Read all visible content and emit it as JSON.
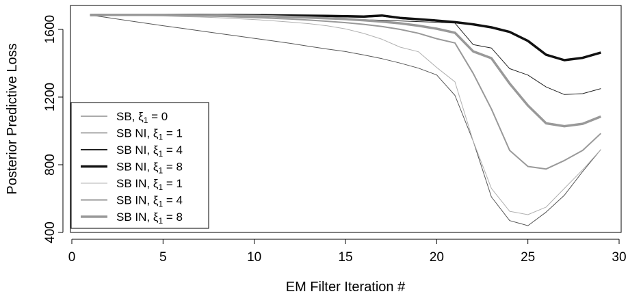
{
  "chart_data": {
    "type": "line",
    "xlabel": "EM Filter Iteration #",
    "ylabel": "Posterior Predictive Loss",
    "xlim": [
      0,
      30
    ],
    "ylim": [
      400,
      1700
    ],
    "xticks": [
      0,
      5,
      10,
      15,
      20,
      25,
      30
    ],
    "yticks": [
      400,
      800,
      1200,
      1600
    ],
    "legend_position": "bottom-left",
    "x": [
      1,
      2,
      3,
      4,
      5,
      6,
      7,
      8,
      9,
      10,
      11,
      12,
      13,
      14,
      15,
      16,
      17,
      18,
      19,
      20,
      21,
      22,
      23,
      24,
      25,
      26,
      27,
      28,
      29
    ],
    "series": [
      {
        "name": "SB, ξ1 = 0",
        "legend_parts": [
          "SB, ",
          "ξ",
          "1",
          " = 0"
        ],
        "color": "#555555",
        "width": 1,
        "values": [
          1685,
          1669,
          1653,
          1637,
          1622,
          1607,
          1592,
          1577,
          1562,
          1547,
          1532,
          1517,
          1500,
          1484,
          1469,
          1449,
          1427,
          1401,
          1371,
          1331,
          1210,
          940,
          610,
          470,
          440,
          520,
          620,
          760,
          890
        ]
      },
      {
        "name": "SB NI, ξ1 = 1",
        "legend_parts": [
          "SB NI, ",
          "ξ",
          "1",
          " = 1"
        ],
        "color": "#222222",
        "width": 1,
        "values": [
          1685,
          1685,
          1685,
          1684,
          1684,
          1683,
          1682,
          1681,
          1679,
          1676,
          1673,
          1670,
          1667,
          1664,
          1661,
          1657,
          1654,
          1650,
          1646,
          1642,
          1637,
          1510,
          1490,
          1368,
          1330,
          1260,
          1215,
          1220,
          1250
        ]
      },
      {
        "name": "SB NI, ξ1 = 4",
        "legend_parts": [
          "SB NI, ",
          "ξ",
          "1",
          " = 4"
        ],
        "color": "#222222",
        "width": 2,
        "values": [
          1685,
          1686,
          1686,
          1686,
          1686,
          1685,
          1685,
          1684,
          1684,
          1683,
          1682,
          1681,
          1679,
          1677,
          1675,
          1673,
          1680,
          1665,
          1657,
          1650,
          1644,
          1630,
          1612,
          1585,
          1530,
          1448,
          1418,
          1432,
          1462
        ]
      },
      {
        "name": "SB NI, ξ1 = 8",
        "legend_parts": [
          "SB NI, ",
          "ξ",
          "1",
          " = 8"
        ],
        "color": "#111111",
        "width": 3.5,
        "values": [
          1685,
          1686,
          1686,
          1686,
          1686,
          1686,
          1686,
          1685,
          1685,
          1684,
          1683,
          1682,
          1681,
          1680,
          1678,
          1676,
          1682,
          1668,
          1660,
          1652,
          1643,
          1630,
          1612,
          1585,
          1532,
          1450,
          1418,
          1432,
          1463
        ]
      },
      {
        "name": "SB IN, ξ1 = 1",
        "legend_parts": [
          "SB IN, ",
          "ξ",
          "1",
          " = 1"
        ],
        "color": "#b0b0b0",
        "width": 1,
        "values": [
          1685,
          1684,
          1683,
          1681,
          1679,
          1676,
          1673,
          1669,
          1664,
          1658,
          1651,
          1643,
          1634,
          1621,
          1603,
          1576,
          1542,
          1495,
          1468,
          1375,
          1290,
          940,
          660,
          525,
          505,
          550,
          660,
          770,
          890
        ]
      },
      {
        "name": "SB IN, ξ1 = 4",
        "legend_parts": [
          "SB IN, ",
          "ξ",
          "1",
          " = 4"
        ],
        "color": "#999999",
        "width": 2,
        "values": [
          1685,
          1685,
          1685,
          1684,
          1683,
          1681,
          1679,
          1677,
          1674,
          1670,
          1666,
          1661,
          1655,
          1648,
          1640,
          1630,
          1617,
          1600,
          1577,
          1545,
          1520,
          1340,
          1130,
          885,
          790,
          775,
          825,
          885,
          985
        ]
      },
      {
        "name": "SB IN, ξ1 = 8",
        "legend_parts": [
          "SB IN, ",
          "ξ",
          "1",
          " = 8"
        ],
        "color": "#999999",
        "width": 3.5,
        "values": [
          1685,
          1686,
          1686,
          1686,
          1686,
          1685,
          1684,
          1683,
          1681,
          1679,
          1677,
          1674,
          1670,
          1666,
          1661,
          1654,
          1646,
          1636,
          1622,
          1604,
          1580,
          1470,
          1430,
          1280,
          1150,
          1045,
          1028,
          1042,
          1085
        ]
      }
    ]
  }
}
